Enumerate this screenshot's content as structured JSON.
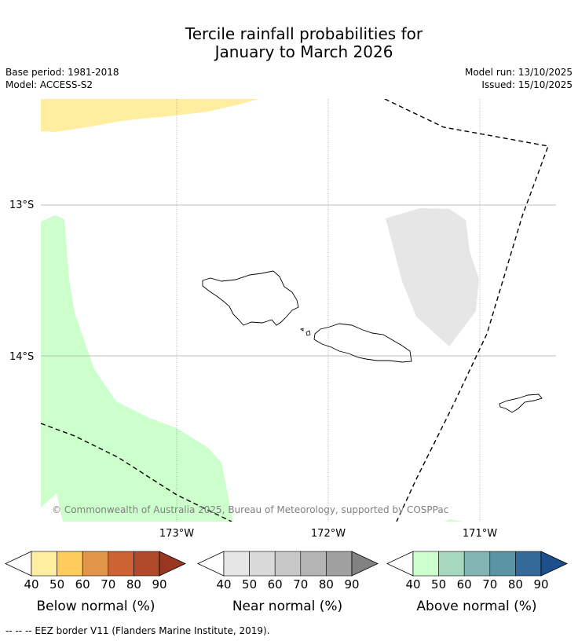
{
  "title_line1": "Tercile rainfall probabilities for",
  "title_line2": "January to March 2026",
  "base_period": "Base period: 1981-2018",
  "model": "Model: ACCESS-S2",
  "model_run": "Model run: 13/10/2025",
  "issued": "Issued: 15/10/2025",
  "lat_labels": [
    "13°S",
    "14°S"
  ],
  "lon_labels": [
    "173°W",
    "172°W",
    "171°W"
  ],
  "copyright": "© Commonwealth of Australia 2025, Bureau of Meteorology, supported by COSPPac",
  "colorbars": [
    {
      "label": "Below normal (%)",
      "ticks": [
        "40",
        "50",
        "60",
        "70",
        "80",
        "90"
      ],
      "colors": [
        "#ffeda0",
        "#fecc5c",
        "#e3954a",
        "#cd6233",
        "#b04a2a",
        "#9a3722"
      ]
    },
    {
      "label": "Near normal (%)",
      "ticks": [
        "40",
        "50",
        "60",
        "70",
        "80",
        "90"
      ],
      "colors": [
        "#e6e6e6",
        "#d9d9d9",
        "#c8c8c8",
        "#b4b4b4",
        "#a0a0a0",
        "#828282"
      ]
    },
    {
      "label": "Above normal (%)",
      "ticks": [
        "40",
        "50",
        "60",
        "70",
        "80",
        "90"
      ],
      "colors": [
        "#ccffcc",
        "#a6d8bd",
        "#80b5b1",
        "#5a93a3",
        "#326a9a",
        "#1c4f8c"
      ]
    }
  ],
  "footnote": "--  --  -- EEZ border V11 (Flanders Marine Institute, 2019)."
}
